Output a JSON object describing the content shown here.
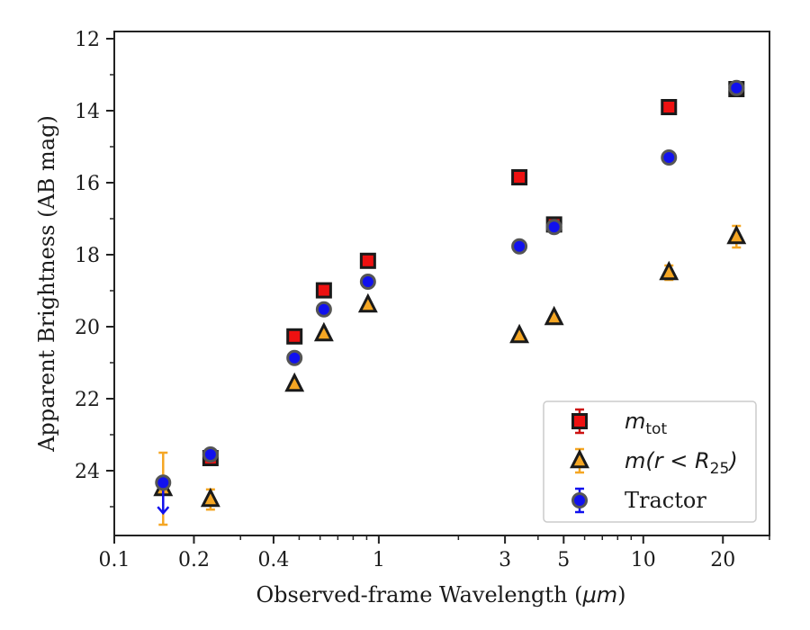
{
  "chart_data": {
    "type": "scatter",
    "xlabel_prefix": "Observed-frame Wavelength (",
    "xlabel_unit": "μm",
    "xlabel_suffix": ")",
    "ylabel": "Apparent Brightness (AB mag)",
    "xscale": "log",
    "xlim": [
      0.1,
      30
    ],
    "ylim": [
      25.8,
      11.8
    ],
    "y_inverted": true,
    "xticks": [
      {
        "value": 0.1,
        "label": "0.1"
      },
      {
        "value": 0.2,
        "label": "0.2"
      },
      {
        "value": 0.4,
        "label": "0.4"
      },
      {
        "value": 1,
        "label": "1"
      },
      {
        "value": 3,
        "label": "3"
      },
      {
        "value": 5,
        "label": "5"
      },
      {
        "value": 10,
        "label": "10"
      },
      {
        "value": 20,
        "label": "20"
      }
    ],
    "yticks": [
      {
        "value": 12,
        "label": "12"
      },
      {
        "value": 14,
        "label": "14"
      },
      {
        "value": 16,
        "label": "16"
      },
      {
        "value": 18,
        "label": "18"
      },
      {
        "value": 20,
        "label": "20"
      },
      {
        "value": 22,
        "label": "22"
      },
      {
        "value": 24,
        "label": "24"
      }
    ],
    "legend_position": "lower-right",
    "grid": false,
    "series": [
      {
        "legend_main": "m",
        "legend_sub": "tot",
        "legend_rest": "",
        "marker": "square",
        "fill": "#ee1111",
        "edge": "#1a1a1a",
        "errcolor": "#cc1111",
        "points": [
          {
            "x": 0.231,
            "y": 23.65,
            "err": 0.12
          },
          {
            "x": 0.48,
            "y": 20.27,
            "err": 0.03
          },
          {
            "x": 0.62,
            "y": 18.99,
            "err": 0.03
          },
          {
            "x": 0.91,
            "y": 18.17,
            "err": 0.03
          },
          {
            "x": 3.4,
            "y": 15.85,
            "err": 0.03
          },
          {
            "x": 4.6,
            "y": 17.16,
            "err": 0.03
          },
          {
            "x": 12.5,
            "y": 13.9,
            "err": 0.03
          },
          {
            "x": 22.5,
            "y": 13.4,
            "err": 0.03
          }
        ]
      },
      {
        "legend_main": "m",
        "legend_sub": "25",
        "legend_rest": "(r < R",
        "marker": "triangle",
        "fill": "#f5a623",
        "edge": "#1a1a1a",
        "errcolor": "#f5a623",
        "points": [
          {
            "x": 0.153,
            "y": 24.5,
            "err": 1.0
          },
          {
            "x": 0.231,
            "y": 24.8,
            "err": 0.28
          },
          {
            "x": 0.48,
            "y": 21.6,
            "err": 0.05
          },
          {
            "x": 0.62,
            "y": 20.2,
            "err": 0.05
          },
          {
            "x": 0.91,
            "y": 19.4,
            "err": 0.05
          },
          {
            "x": 3.4,
            "y": 20.25,
            "err": 0.05
          },
          {
            "x": 4.6,
            "y": 19.75,
            "err": 0.05
          },
          {
            "x": 12.5,
            "y": 18.5,
            "err": 0.2
          },
          {
            "x": 22.5,
            "y": 17.5,
            "err": 0.3
          }
        ]
      },
      {
        "legend_main": "Tractor",
        "legend_sub": "",
        "legend_rest": "",
        "marker": "circle",
        "fill": "#1111ee",
        "edge": "#555555",
        "errcolor": "#1111ee",
        "upper_limit_x": 0.153,
        "points": [
          {
            "x": 0.153,
            "y": 24.33,
            "err": 0.0
          },
          {
            "x": 0.231,
            "y": 23.55,
            "err": 0.03
          },
          {
            "x": 0.48,
            "y": 20.87,
            "err": 0.02
          },
          {
            "x": 0.62,
            "y": 19.52,
            "err": 0.02
          },
          {
            "x": 0.91,
            "y": 18.75,
            "err": 0.02
          },
          {
            "x": 3.4,
            "y": 17.77,
            "err": 0.02
          },
          {
            "x": 4.6,
            "y": 17.23,
            "err": 0.02
          },
          {
            "x": 12.5,
            "y": 15.3,
            "err": 0.02
          },
          {
            "x": 22.5,
            "y": 13.37,
            "err": 0.02
          }
        ]
      }
    ]
  }
}
